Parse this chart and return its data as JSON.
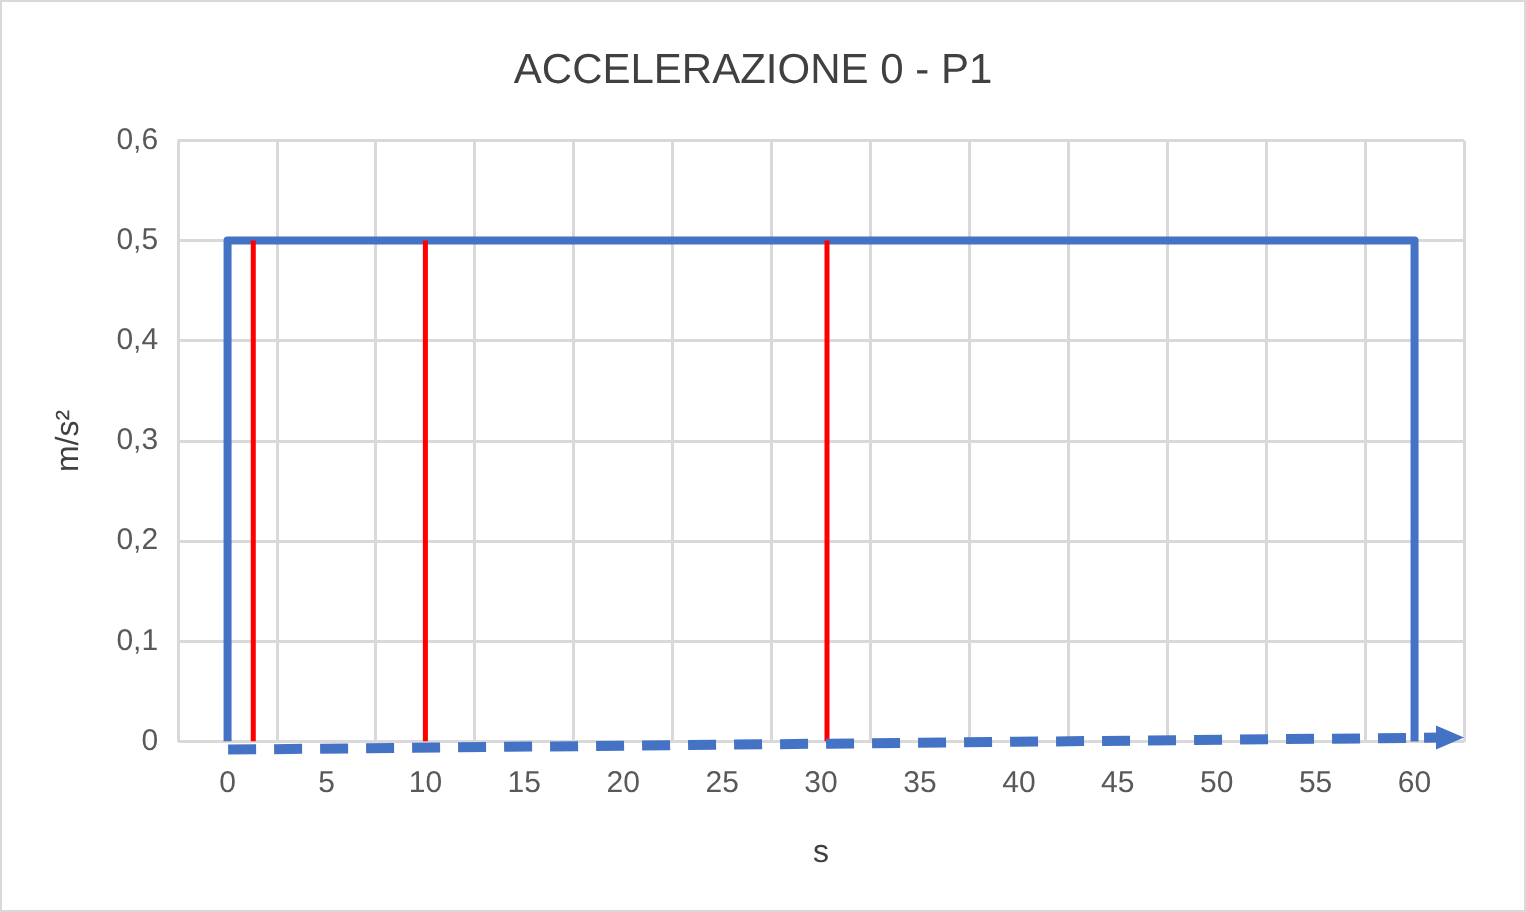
{
  "chart_data": {
    "type": "line",
    "title": "ACCELERAZIONE 0 - P1",
    "xlabel": "s",
    "ylabel": "m/s²",
    "series": [
      {
        "color": "#4472c4",
        "x": [
          0,
          0,
          60,
          60
        ],
        "values": [
          0,
          0.5,
          0.5,
          0
        ]
      },
      {
        "color": "#ff0000",
        "x": [
          1.3,
          1.3
        ],
        "values": [
          0,
          0.5
        ]
      },
      {
        "color": "#ff0000",
        "x": [
          10,
          10
        ],
        "values": [
          0,
          0.5
        ]
      },
      {
        "color": "#ff0000",
        "x": [
          30.3,
          30.3
        ],
        "values": [
          0,
          0.5
        ]
      }
    ],
    "xlim": [
      -2.5,
      62.5
    ],
    "xticks": [
      0,
      5,
      10,
      15,
      20,
      25,
      30,
      35,
      40,
      45,
      50,
      55,
      60
    ],
    "ylim": [
      0,
      0.6
    ],
    "yticks": [
      0,
      {
        "value": 0.1,
        "label": "0,1"
      },
      {
        "value": 0.2,
        "label": "0,2"
      },
      {
        "value": 0.3,
        "label": "0,3"
      },
      {
        "value": 0.4,
        "label": "0,4"
      },
      {
        "value": 0.5,
        "label": "0,5"
      },
      {
        "value": 0.6,
        "label": "0,6"
      }
    ],
    "grid": true,
    "legend": false,
    "marker": "none",
    "line_style": "solid"
  }
}
